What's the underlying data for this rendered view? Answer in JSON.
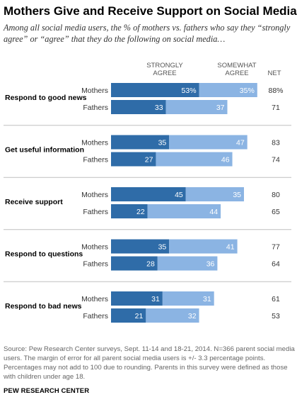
{
  "title": "Mothers Give and Receive Support on Social Media",
  "subtitle": "Among all social media users, the % of mothers vs. fathers who say they “strongly agree” or “agree” that they do the following on social media…",
  "source": "Source: Pew Research Center surveys, Sept. 11-14 and 18-21, 2014.  N=366 parent social media users. The margin of error for all parent social media users is +/- 3.3 percentage points. Percentages may not add to 100 due to rounding. Parents in this survey were defined as those with children under age 18.",
  "org": "PEW RESEARCH CENTER",
  "colors": {
    "strongly_agree": "#2f6ca8",
    "somewhat_agree": "#8bb4e3",
    "divider": "#bfbfbf"
  },
  "chart_data": {
    "type": "bar",
    "orientation": "horizontal",
    "stacked": true,
    "legend": [
      "STRONGLY AGREE",
      "SOMEWHAT AGREE"
    ],
    "net_label": "NET",
    "categories": [
      "Respond to good news",
      "Get useful information",
      "Receive support",
      "Respond to questions",
      "Respond to bad news"
    ],
    "groups": [
      "Mothers",
      "Fathers"
    ],
    "series": [
      {
        "name": "STRONGLY AGREE",
        "values": [
          [
            53,
            33
          ],
          [
            35,
            27
          ],
          [
            45,
            22
          ],
          [
            35,
            28
          ],
          [
            31,
            21
          ]
        ]
      },
      {
        "name": "SOMEWHAT AGREE",
        "values": [
          [
            35,
            37
          ],
          [
            47,
            46
          ],
          [
            35,
            44
          ],
          [
            41,
            36
          ],
          [
            31,
            32
          ]
        ]
      }
    ],
    "value_labels": {
      "STRONGLY AGREE": [
        [
          "53%",
          "33"
        ],
        [
          "35",
          "27"
        ],
        [
          "45",
          "22"
        ],
        [
          "35",
          "28"
        ],
        [
          "31",
          "21"
        ]
      ],
      "SOMEWHAT AGREE": [
        [
          "35%",
          "37"
        ],
        [
          "47",
          "46"
        ],
        [
          "35",
          "44"
        ],
        [
          "41",
          "36"
        ],
        [
          "31",
          "32"
        ]
      ]
    },
    "net": [
      [
        "88%",
        "71"
      ],
      [
        "83",
        "74"
      ],
      [
        "80",
        "65"
      ],
      [
        "77",
        "64"
      ],
      [
        "61",
        "53"
      ]
    ]
  }
}
